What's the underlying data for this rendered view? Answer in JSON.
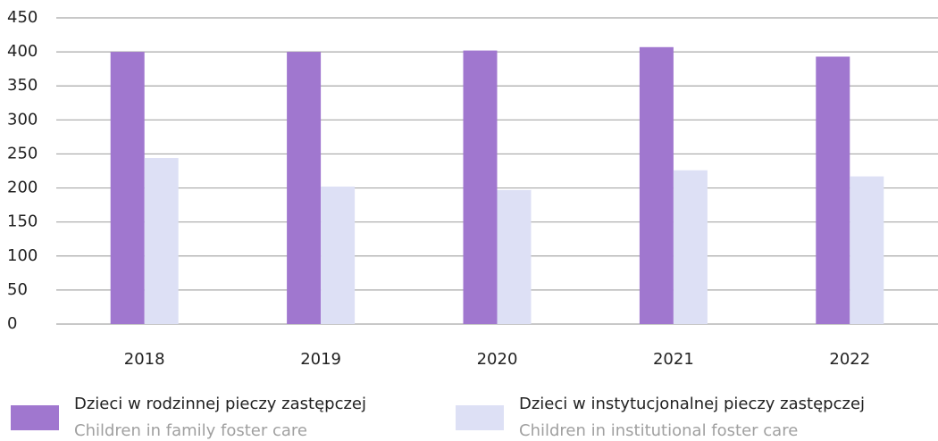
{
  "chart_data": {
    "type": "bar",
    "categories": [
      "2018",
      "2019",
      "2020",
      "2021",
      "2022"
    ],
    "series": [
      {
        "name": "Dzieci w rodzinnej pieczy zastępczej",
        "name_en": "Children in family foster care",
        "color": "#a077cf",
        "values": [
          400,
          400,
          402,
          407,
          393
        ]
      },
      {
        "name": "Dzieci w instytucjonalnej pieczy zastępczej",
        "name_en": "Children in institutional foster care",
        "color": "#dde0f5",
        "values": [
          244,
          202,
          197,
          226,
          217
        ]
      }
    ],
    "ylim": [
      0,
      450
    ],
    "yticks": [
      0,
      50,
      100,
      150,
      200,
      250,
      300,
      350,
      400,
      450
    ],
    "grid": true,
    "legend": "bottom"
  }
}
